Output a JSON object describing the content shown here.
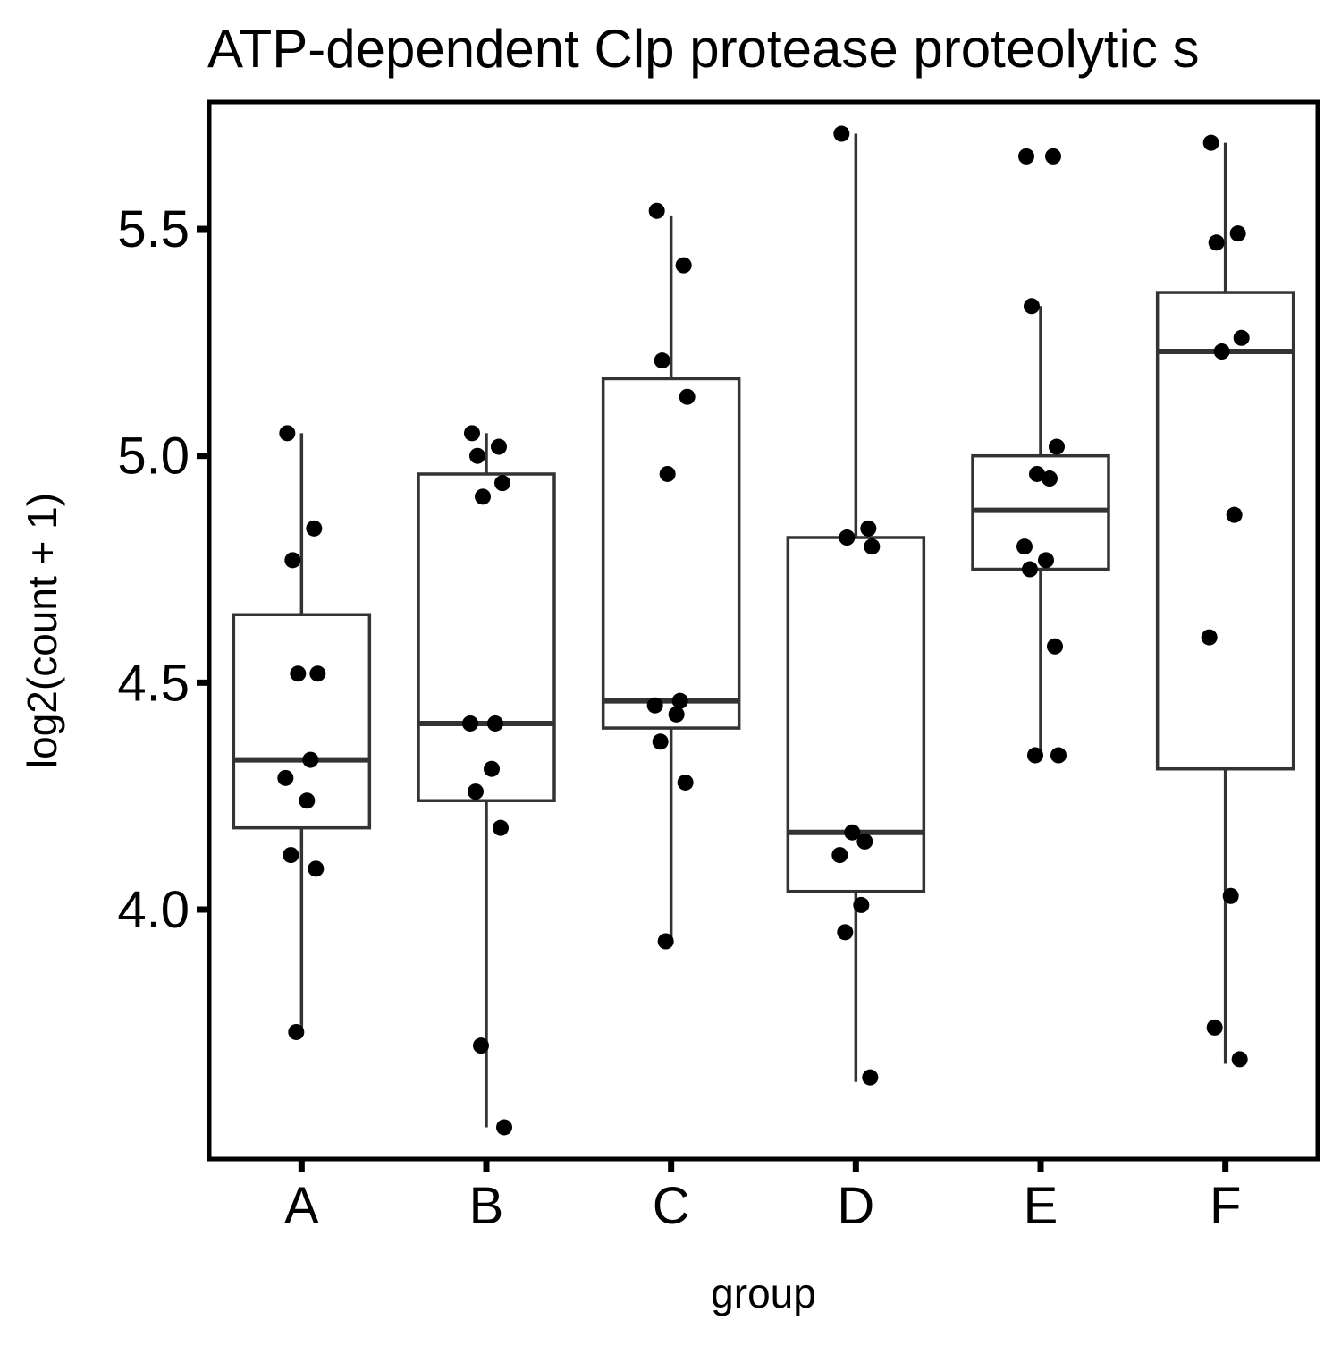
{
  "chart_data": {
    "type": "boxplot",
    "title": "ATP-dependent Clp protease proteolytic s",
    "xlabel": "group",
    "ylabel": "log2(count + 1)",
    "ylim": [
      3.45,
      5.78
    ],
    "yticks": [
      4.0,
      4.5,
      5.0,
      5.5
    ],
    "ytick_labels": [
      "4.0",
      "4.5",
      "5.0",
      "5.5"
    ],
    "categories": [
      "A",
      "B",
      "C",
      "D",
      "E",
      "F"
    ],
    "grid": false,
    "legend": "none",
    "colors": {
      "box_stroke": "#333333",
      "point": "#000000",
      "frame": "#000000",
      "background": "#ffffff"
    },
    "boxes": [
      {
        "group": "A",
        "q1": 4.18,
        "median": 4.33,
        "q3": 4.65,
        "whisker_low": 3.73,
        "whisker_high": 5.05
      },
      {
        "group": "B",
        "q1": 4.24,
        "median": 4.41,
        "q3": 4.96,
        "whisker_low": 3.52,
        "whisker_high": 5.05
      },
      {
        "group": "C",
        "q1": 4.4,
        "median": 4.46,
        "q3": 5.17,
        "whisker_low": 3.93,
        "whisker_high": 5.53
      },
      {
        "group": "D",
        "q1": 4.04,
        "median": 4.17,
        "q3": 4.82,
        "whisker_low": 3.62,
        "whisker_high": 5.71
      },
      {
        "group": "E",
        "q1": 4.75,
        "median": 4.88,
        "q3": 5.0,
        "whisker_low": 4.34,
        "whisker_high": 5.33
      },
      {
        "group": "F",
        "q1": 4.31,
        "median": 5.23,
        "q3": 5.36,
        "whisker_low": 3.66,
        "whisker_high": 5.69
      }
    ],
    "points": [
      {
        "group": "A",
        "values": [
          5.05,
          4.84,
          4.77,
          4.52,
          4.52,
          4.33,
          4.29,
          4.24,
          4.12,
          4.09,
          3.73
        ]
      },
      {
        "group": "B",
        "values": [
          5.05,
          5.02,
          5.0,
          4.94,
          4.91,
          4.41,
          4.41,
          4.31,
          4.26,
          4.18,
          3.7,
          3.52
        ]
      },
      {
        "group": "C",
        "values": [
          5.54,
          5.42,
          5.21,
          5.13,
          4.96,
          4.46,
          4.45,
          4.43,
          4.37,
          4.28,
          3.93
        ]
      },
      {
        "group": "D",
        "values": [
          5.71,
          4.84,
          4.82,
          4.8,
          4.17,
          4.15,
          4.12,
          4.01,
          3.95,
          3.63
        ]
      },
      {
        "group": "E",
        "values": [
          5.66,
          5.66,
          5.33,
          5.02,
          4.96,
          4.95,
          4.8,
          4.77,
          4.75,
          4.58,
          4.34,
          4.34
        ]
      },
      {
        "group": "F",
        "values": [
          5.69,
          5.49,
          5.47,
          5.26,
          5.23,
          4.87,
          4.6,
          4.03,
          3.74,
          3.67
        ]
      }
    ]
  }
}
